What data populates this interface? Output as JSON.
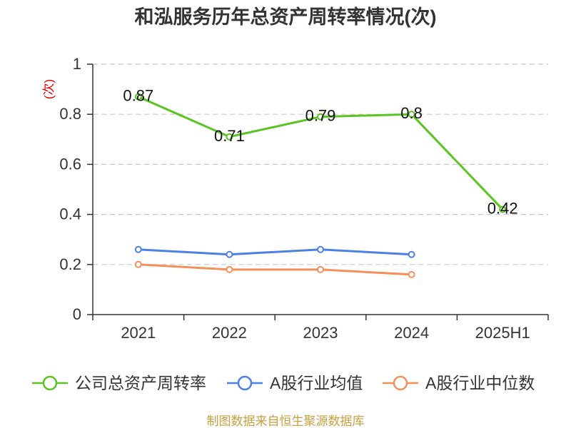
{
  "source_note": "制图数据来自恒生聚源数据库",
  "chart_data": {
    "type": "line",
    "title": "和泓服务历年总资产周转率情况(次)",
    "ylabel": "(次)",
    "xlabel": "",
    "categories": [
      "2021",
      "2022",
      "2023",
      "2024",
      "2025H1"
    ],
    "ylim": [
      0,
      1
    ],
    "yticks": [
      0,
      0.2,
      0.4,
      0.6,
      0.8,
      1
    ],
    "grid": true,
    "legend": "bottom",
    "series": [
      {
        "name": "公司总资产周转率",
        "color": "#5bc423",
        "show_labels": true,
        "values": [
          0.87,
          0.71,
          0.79,
          0.8,
          0.42
        ]
      },
      {
        "name": "A股行业均值",
        "color": "#4d80e4",
        "show_labels": false,
        "values": [
          0.26,
          0.24,
          0.26,
          0.24,
          null
        ]
      },
      {
        "name": "A股行业中位数",
        "color": "#f5905a",
        "show_labels": false,
        "values": [
          0.2,
          0.18,
          0.18,
          0.16,
          null
        ]
      }
    ]
  }
}
